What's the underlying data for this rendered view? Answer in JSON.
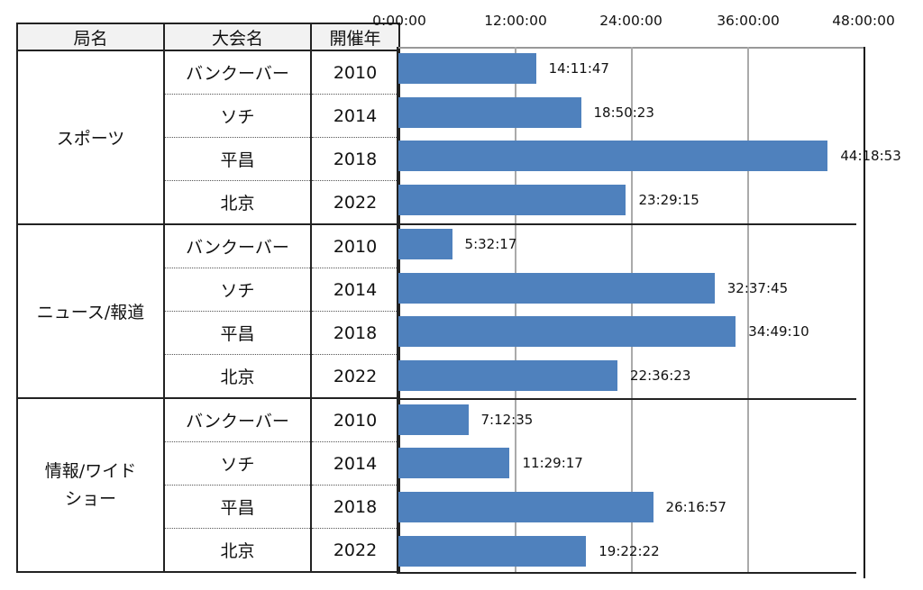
{
  "table": {
    "headers": [
      "局名",
      "大会名",
      "開催年"
    ],
    "groups": [
      {
        "station": "スポーツ",
        "rows": [
          {
            "event": "バンクーバー",
            "year": "2010"
          },
          {
            "event": "ソチ",
            "year": "2014"
          },
          {
            "event": "平昌",
            "year": "2018"
          },
          {
            "event": "北京",
            "year": "2022"
          }
        ]
      },
      {
        "station": "ニュース/報道",
        "rows": [
          {
            "event": "バンクーバー",
            "year": "2010"
          },
          {
            "event": "ソチ",
            "year": "2014"
          },
          {
            "event": "平昌",
            "year": "2018"
          },
          {
            "event": "北京",
            "year": "2022"
          }
        ]
      },
      {
        "station": "情報/ワイド ショー",
        "station_lines": [
          "情報/ワイド",
          "ショー"
        ],
        "rows": [
          {
            "event": "バンクーバー",
            "year": "2010"
          },
          {
            "event": "ソチ",
            "year": "2014"
          },
          {
            "event": "平昌",
            "year": "2018"
          },
          {
            "event": "北京",
            "year": "2022"
          }
        ]
      }
    ]
  },
  "chart_data": {
    "type": "bar",
    "orientation": "horizontal",
    "title": "",
    "xlabel": "",
    "ylabel": "",
    "x_ticks": [
      "0:00:00",
      "12:00:00",
      "24:00:00",
      "36:00:00",
      "48:00:00"
    ],
    "xlim_hours": [
      0,
      48
    ],
    "grid": true,
    "bar_color": "#4f81bd",
    "categories": [
      "スポーツ / バンクーバー 2010",
      "スポーツ / ソチ 2014",
      "スポーツ / 平昌 2018",
      "スポーツ / 北京 2022",
      "ニュース/報道 / バンクーバー 2010",
      "ニュース/報道 / ソチ 2014",
      "ニュース/報道 / 平昌 2018",
      "ニュース/報道 / 北京 2022",
      "情報/ワイドショー / バンクーバー 2010",
      "情報/ワイドショー / ソチ 2014",
      "情報/ワイドショー / 平昌 2018",
      "情報/ワイドショー / 北京 2022"
    ],
    "labels": [
      "14:11:47",
      "18:50:23",
      "44:18:53",
      "23:29:15",
      "5:32:17",
      "32:37:45",
      "34:49:10",
      "22:36:23",
      "7:12:35",
      "11:29:17",
      "26:16:57",
      "19:22:22"
    ],
    "values_hours": [
      14.196,
      18.84,
      44.315,
      23.488,
      5.538,
      32.629,
      34.819,
      22.606,
      7.21,
      11.488,
      26.283,
      19.373
    ]
  }
}
